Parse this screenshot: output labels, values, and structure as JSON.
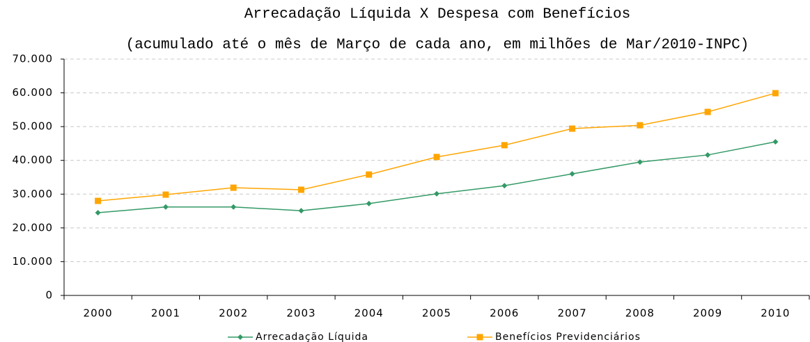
{
  "chart_data": {
    "type": "line",
    "title": "Arrecadação Líquida X Despesa com Benefícios",
    "subtitle": "(acumulado até o mês de Março de cada ano, em milhões de Mar/2010-INPC)",
    "categories": [
      "2000",
      "2001",
      "2002",
      "2003",
      "2004",
      "2005",
      "2006",
      "2007",
      "2008",
      "2009",
      "2010"
    ],
    "series": [
      {
        "name": "Arrecadação Líquida",
        "color": "#339966",
        "marker": "diamond",
        "values": [
          24500,
          26200,
          26200,
          25100,
          27200,
          30100,
          32500,
          36000,
          39500,
          41600,
          45500
        ]
      },
      {
        "name": "Benefícios Previdenciários",
        "color": "#ffa500",
        "marker": "square",
        "values": [
          28000,
          29850,
          31900,
          31300,
          35800,
          41000,
          44500,
          49400,
          50400,
          54350,
          59900
        ]
      }
    ],
    "ylim": [
      0,
      70000
    ],
    "yticks": [
      0,
      {
        "value": 10000,
        "label": "10.000"
      },
      {
        "value": 20000,
        "label": "20.000"
      },
      {
        "value": 30000,
        "label": "30.000"
      },
      {
        "value": 40000,
        "label": "40.000"
      },
      {
        "value": 50000,
        "label": "50.000"
      },
      {
        "value": 60000,
        "label": "60.000"
      },
      {
        "value": 70000,
        "label": "70.000"
      }
    ],
    "grid": true,
    "legend": "bottom"
  }
}
